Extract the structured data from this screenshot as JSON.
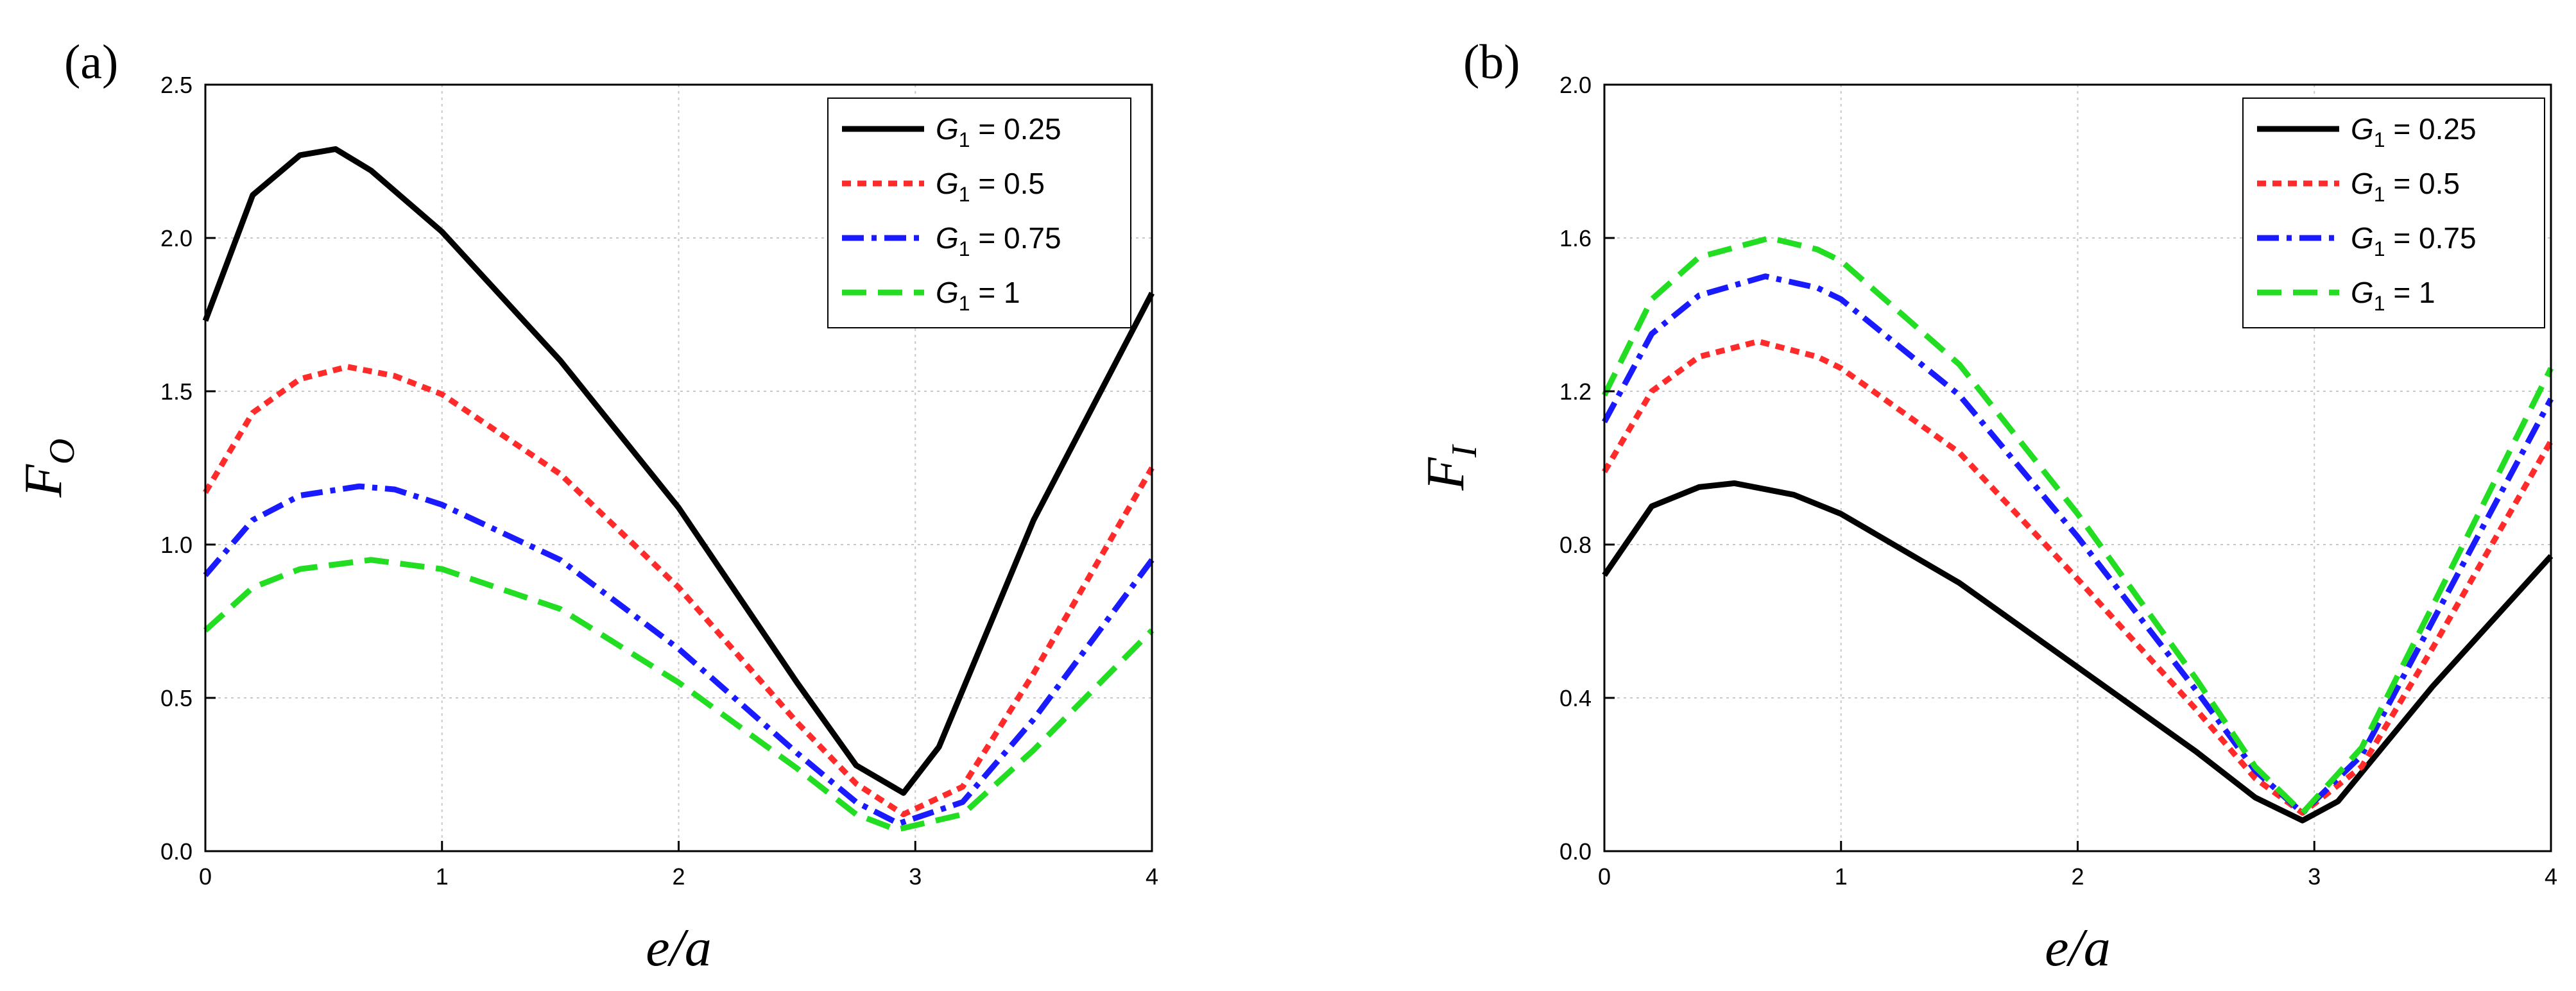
{
  "chart_data": [
    {
      "panel_label": "(a)",
      "type": "line",
      "xlabel": "e/a",
      "ylabel_main": "F",
      "ylabel_sub": "O",
      "xlim": [
        0,
        4
      ],
      "ylim": [
        0,
        2.5
      ],
      "xticks": [
        0,
        1,
        2,
        3,
        4
      ],
      "xtick_labels": [
        "0",
        "1",
        "2",
        "3",
        "4"
      ],
      "yticks": [
        0,
        0.5,
        1.0,
        1.5,
        2.0,
        2.5
      ],
      "ytick_labels": [
        "0.0",
        "0.5",
        "1.0",
        "1.5",
        "2.0",
        "2.5"
      ],
      "grid": true,
      "legend_position": "top-right",
      "series": [
        {
          "name": "G1 = 0.25",
          "label_main": "G",
          "label_sub": "1",
          "label_rest": " = 0.25",
          "color": "#000000",
          "style": "solid",
          "x": [
            0,
            0.2,
            0.4,
            0.55,
            0.7,
            1.0,
            1.5,
            2.0,
            2.5,
            2.75,
            2.95,
            3.1,
            3.5,
            4.0
          ],
          "y": [
            1.73,
            2.14,
            2.27,
            2.29,
            2.22,
            2.02,
            1.6,
            1.12,
            0.55,
            0.28,
            0.19,
            0.34,
            1.08,
            1.82
          ]
        },
        {
          "name": "G1 = 0.5",
          "label_main": "G",
          "label_sub": "1",
          "label_rest": " = 0.5",
          "color": "#ff2a2a",
          "style": "dot",
          "x": [
            0,
            0.2,
            0.4,
            0.6,
            0.8,
            1.0,
            1.5,
            2.0,
            2.5,
            2.75,
            2.95,
            3.2,
            3.5,
            4.0
          ],
          "y": [
            1.17,
            1.43,
            1.54,
            1.58,
            1.55,
            1.49,
            1.23,
            0.86,
            0.42,
            0.22,
            0.12,
            0.21,
            0.58,
            1.25
          ]
        },
        {
          "name": "G1 = 0.75",
          "label_main": "G",
          "label_sub": "1",
          "label_rest": " = 0.75",
          "color": "#1a1aff",
          "style": "dashdot",
          "x": [
            0,
            0.2,
            0.4,
            0.65,
            0.8,
            1.0,
            1.5,
            2.0,
            2.5,
            2.75,
            2.93,
            3.2,
            3.5,
            4.0
          ],
          "y": [
            0.9,
            1.08,
            1.16,
            1.19,
            1.18,
            1.13,
            0.95,
            0.66,
            0.32,
            0.16,
            0.09,
            0.16,
            0.43,
            0.95
          ]
        },
        {
          "name": "G1 = 1",
          "label_main": "G",
          "label_sub": "1",
          "label_rest": " = 1",
          "color": "#22dd22",
          "style": "dash",
          "x": [
            0,
            0.2,
            0.4,
            0.7,
            1.0,
            1.5,
            2.0,
            2.5,
            2.75,
            2.92,
            3.2,
            3.5,
            4.0
          ],
          "y": [
            0.72,
            0.86,
            0.92,
            0.95,
            0.92,
            0.79,
            0.55,
            0.27,
            0.12,
            0.07,
            0.12,
            0.33,
            0.72
          ]
        }
      ]
    },
    {
      "panel_label": "(b)",
      "type": "line",
      "xlabel": "e/a",
      "ylabel_main": "F",
      "ylabel_sub": "I",
      "xlim": [
        0,
        4
      ],
      "ylim": [
        0,
        2.0
      ],
      "xticks": [
        0,
        1,
        2,
        3,
        4
      ],
      "xtick_labels": [
        "0",
        "1",
        "2",
        "3",
        "4"
      ],
      "yticks": [
        0,
        0.4,
        0.8,
        1.2,
        1.6,
        2.0
      ],
      "ytick_labels": [
        "0.0",
        "0.4",
        "0.8",
        "1.2",
        "1.6",
        "2.0"
      ],
      "grid": true,
      "legend_position": "top-right",
      "series": [
        {
          "name": "G1 = 0.25",
          "label_main": "G",
          "label_sub": "1",
          "label_rest": " = 0.25",
          "color": "#000000",
          "style": "solid",
          "x": [
            0,
            0.2,
            0.4,
            0.55,
            0.8,
            1.0,
            1.5,
            2.0,
            2.5,
            2.75,
            2.95,
            3.1,
            3.5,
            4.0
          ],
          "y": [
            0.72,
            0.9,
            0.95,
            0.96,
            0.93,
            0.88,
            0.7,
            0.48,
            0.26,
            0.14,
            0.08,
            0.13,
            0.43,
            0.77
          ]
        },
        {
          "name": "G1 = 0.5",
          "label_main": "G",
          "label_sub": "1",
          "label_rest": " = 0.5",
          "color": "#ff2a2a",
          "style": "dot",
          "x": [
            0,
            0.2,
            0.4,
            0.65,
            0.9,
            1.0,
            1.5,
            2.0,
            2.5,
            2.75,
            2.95,
            3.2,
            3.5,
            4.0
          ],
          "y": [
            0.99,
            1.2,
            1.29,
            1.33,
            1.29,
            1.26,
            1.04,
            0.71,
            0.37,
            0.19,
            0.1,
            0.22,
            0.53,
            1.07
          ]
        },
        {
          "name": "G1 = 0.75",
          "label_main": "G",
          "label_sub": "1",
          "label_rest": " = 0.75",
          "color": "#1a1aff",
          "style": "dashdot",
          "x": [
            0,
            0.2,
            0.4,
            0.68,
            0.9,
            1.0,
            1.5,
            2.0,
            2.5,
            2.75,
            2.95,
            3.2,
            3.5,
            4.0
          ],
          "y": [
            1.12,
            1.35,
            1.45,
            1.5,
            1.47,
            1.44,
            1.19,
            0.82,
            0.42,
            0.21,
            0.1,
            0.25,
            0.6,
            1.18
          ]
        },
        {
          "name": "G1 = 1",
          "label_main": "G",
          "label_sub": "1",
          "label_rest": " = 1",
          "color": "#22dd22",
          "style": "dash",
          "x": [
            0,
            0.2,
            0.4,
            0.7,
            0.9,
            1.0,
            1.5,
            2.0,
            2.5,
            2.75,
            2.95,
            3.2,
            3.5,
            4.0
          ],
          "y": [
            1.19,
            1.44,
            1.55,
            1.6,
            1.57,
            1.54,
            1.27,
            0.88,
            0.45,
            0.22,
            0.1,
            0.27,
            0.64,
            1.26
          ]
        }
      ]
    }
  ]
}
